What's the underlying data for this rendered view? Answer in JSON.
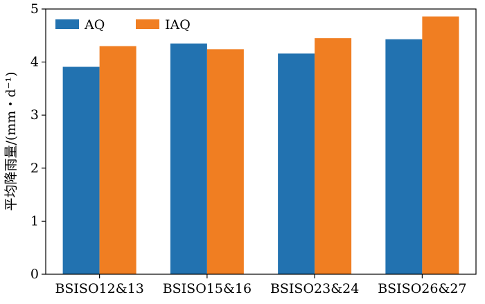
{
  "chart_data": {
    "type": "bar",
    "ylabel": "平均降雨量/(mm・d⁻¹)",
    "xlabel": "",
    "ylim": [
      0,
      5
    ],
    "yticks": [
      0,
      1,
      2,
      3,
      4,
      5
    ],
    "categories": [
      "BSISO12&13",
      "BSISO15&16",
      "BSISO23&24",
      "BSISO26&27"
    ],
    "series": [
      {
        "name": "AQ",
        "color": "#2272b0",
        "values": [
          3.91,
          4.35,
          4.16,
          4.43
        ]
      },
      {
        "name": "IAQ",
        "color": "#f07e22",
        "values": [
          4.3,
          4.24,
          4.45,
          4.86
        ]
      }
    ],
    "legend": "top-left",
    "grid": false
  }
}
